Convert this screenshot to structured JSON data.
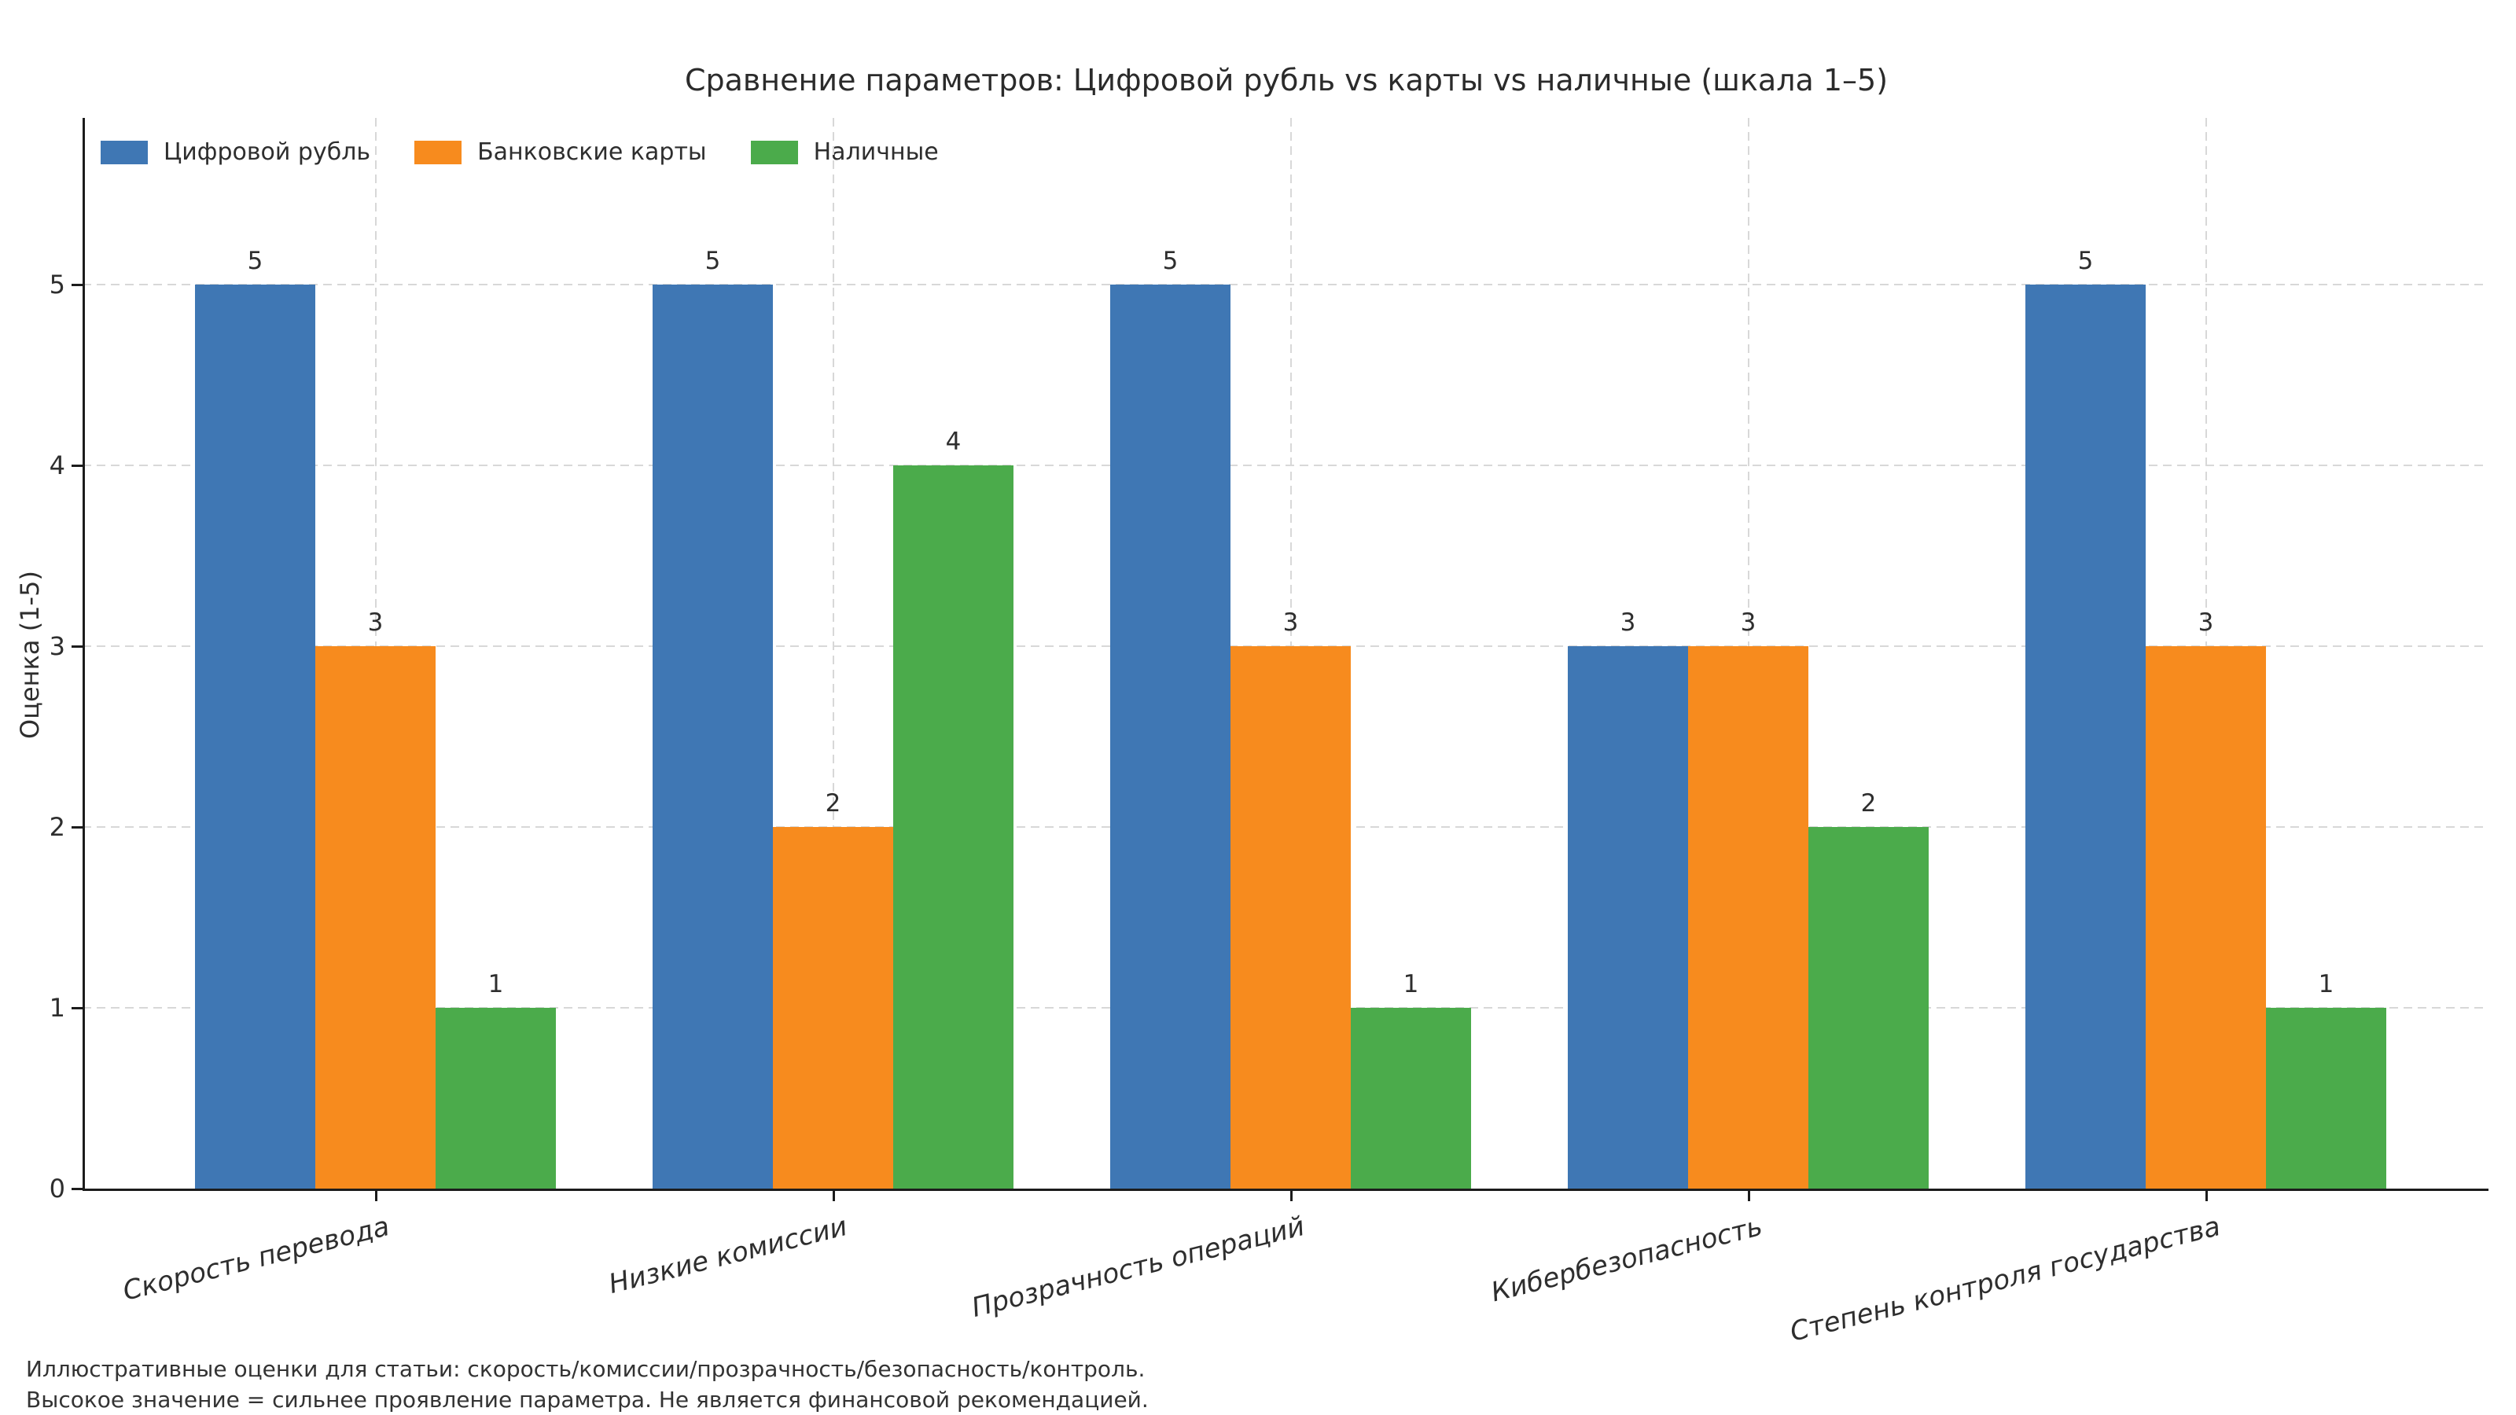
{
  "colors": {
    "series": [
      "#3f77b4",
      "#f78b1e",
      "#4bab4b"
    ],
    "grid": "#d8d8d8",
    "axis": "#1c1c1c",
    "text": "#2e2e2e"
  },
  "footnote": {
    "line1": "Иллюстративные оценки для статьи: скорость/комиссии/прозрачность/безопасность/контроль.",
    "line2": "Высокое значение = сильнее проявление параметра. Не является финансовой рекомендацией."
  },
  "chart_data": {
    "type": "bar",
    "title": "Сравнение параметров: Цифровой рубль vs карты vs наличные (шкала 1–5)",
    "xlabel": "",
    "ylabel": "Оценка (1-5)",
    "categories": [
      "Скорость перевода",
      "Низкие комиссии",
      "Прозрачность операций",
      "Кибербезопасность",
      "Степень контроля государства"
    ],
    "series": [
      {
        "name": "Цифровой рубль",
        "values": [
          5,
          5,
          5,
          3,
          5
        ]
      },
      {
        "name": "Банковские карты",
        "values": [
          3,
          2,
          3,
          3,
          3
        ]
      },
      {
        "name": "Наличные",
        "values": [
          1,
          4,
          1,
          2,
          1
        ]
      }
    ],
    "ylim": [
      0,
      5
    ],
    "yticks": [
      0,
      1,
      2,
      3,
      4,
      5
    ],
    "bar_value_labels": true,
    "grid": "dashed-both-axes",
    "legend_position": "upper-left",
    "x_tick_label_rotation": 14,
    "x_tick_label_style": "italic"
  }
}
